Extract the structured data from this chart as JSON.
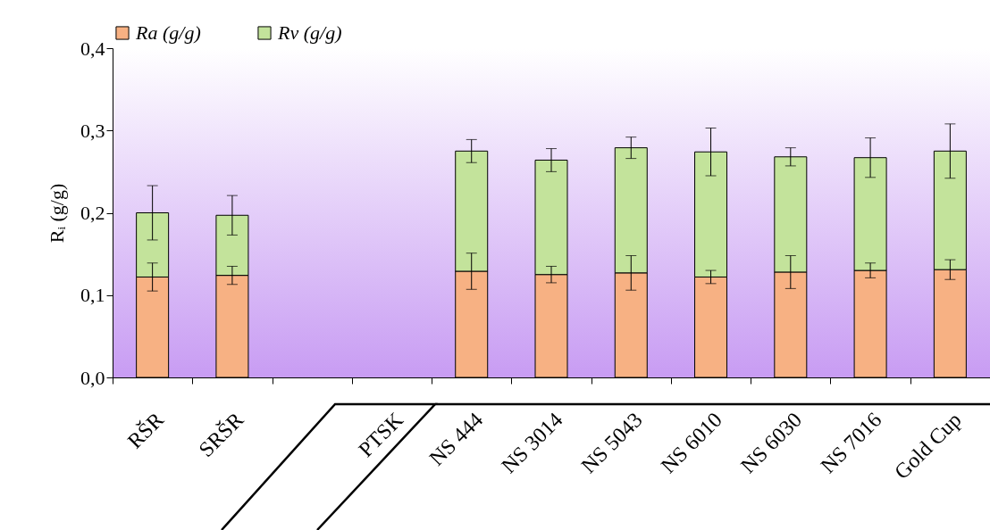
{
  "chart_data": {
    "type": "bar",
    "stacked": true,
    "ylabel": "Rᵢ (g/g)",
    "categories": [
      "RŠR",
      "SRŠR",
      null,
      "PTSK",
      "NS 444",
      "NS 3014",
      "NS 5043",
      "NS 6010",
      "NS 6030",
      "NS 7016",
      "Gold Cup"
    ],
    "series": [
      {
        "name": "Ra (g/g)",
        "color": "#f7b183",
        "values": [
          0.122,
          0.124,
          null,
          null,
          0.129,
          0.125,
          0.127,
          0.122,
          0.128,
          0.13,
          0.131
        ],
        "errors": [
          0.017,
          0.011,
          null,
          null,
          0.022,
          0.01,
          0.021,
          0.008,
          0.02,
          0.009,
          0.012
        ]
      },
      {
        "name": "Rv (g/g)",
        "color": "#c3e39b",
        "values": [
          0.078,
          0.073,
          null,
          null,
          0.146,
          0.139,
          0.152,
          0.152,
          0.14,
          0.137,
          0.144
        ],
        "errors": [
          0.033,
          0.024,
          null,
          null,
          0.014,
          0.014,
          0.013,
          0.029,
          0.011,
          0.024,
          0.033
        ]
      }
    ],
    "ylim": [
      0,
      0.4
    ],
    "yticks": [
      {
        "value": 0,
        "label": "0,0"
      },
      {
        "value": 0.1,
        "label": "0,1"
      },
      {
        "value": 0.2,
        "label": "0,2"
      },
      {
        "value": 0.3,
        "label": "0,3"
      },
      {
        "value": 0.4,
        "label": "0,4"
      }
    ],
    "legend": "top",
    "grid": false
  }
}
